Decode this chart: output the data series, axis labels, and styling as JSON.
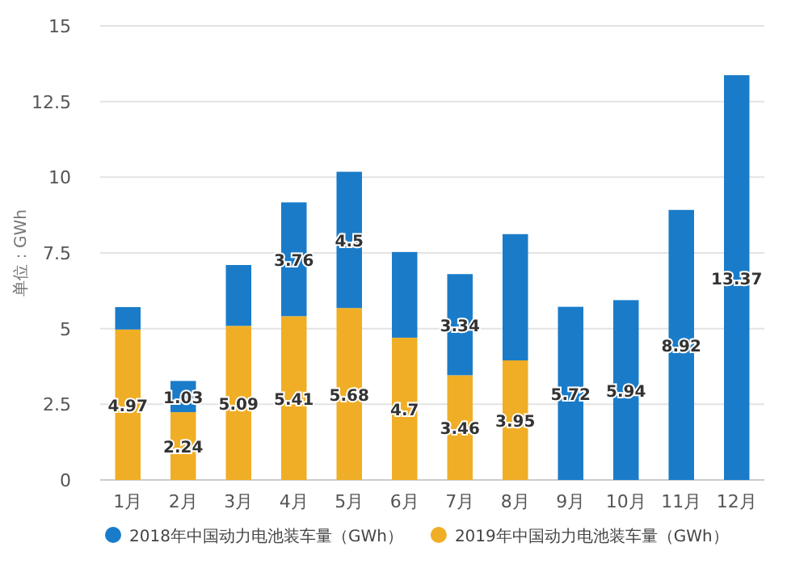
{
  "chart_data": {
    "type": "bar",
    "stacked": true,
    "ylabel": "单位：GWh",
    "categories": [
      "1月",
      "2月",
      "3月",
      "4月",
      "5月",
      "6月",
      "7月",
      "8月",
      "9月",
      "10月",
      "11月",
      "12月"
    ],
    "series": [
      {
        "name": "2019年中国动力电池装车量（GWh）",
        "color": "#f0ae26",
        "values": [
          4.97,
          2.24,
          5.09,
          5.41,
          5.68,
          4.7,
          3.46,
          3.95,
          null,
          null,
          null,
          null
        ],
        "value_labels": [
          "4.97",
          "2.24",
          "5.09",
          "5.41",
          "5.68",
          "4.7",
          "3.46",
          "3.95",
          null,
          null,
          null,
          null
        ]
      },
      {
        "name": "2018年中国动力电池装车量（GWh）",
        "color": "#1a7cc9",
        "values": [
          0.74,
          1.03,
          2.01,
          3.76,
          4.5,
          2.83,
          3.34,
          4.17,
          5.72,
          5.94,
          8.92,
          13.37
        ],
        "value_labels": [
          null,
          "1.03",
          null,
          "3.76",
          "4.5",
          null,
          "3.34",
          null,
          "5.72",
          "5.94",
          "8.92",
          "13.37"
        ]
      }
    ],
    "ylim": [
      0,
      15
    ],
    "yticks": [
      0,
      2.5,
      5,
      7.5,
      10,
      12.5,
      15
    ],
    "grid": "y",
    "legend": "bottom"
  }
}
